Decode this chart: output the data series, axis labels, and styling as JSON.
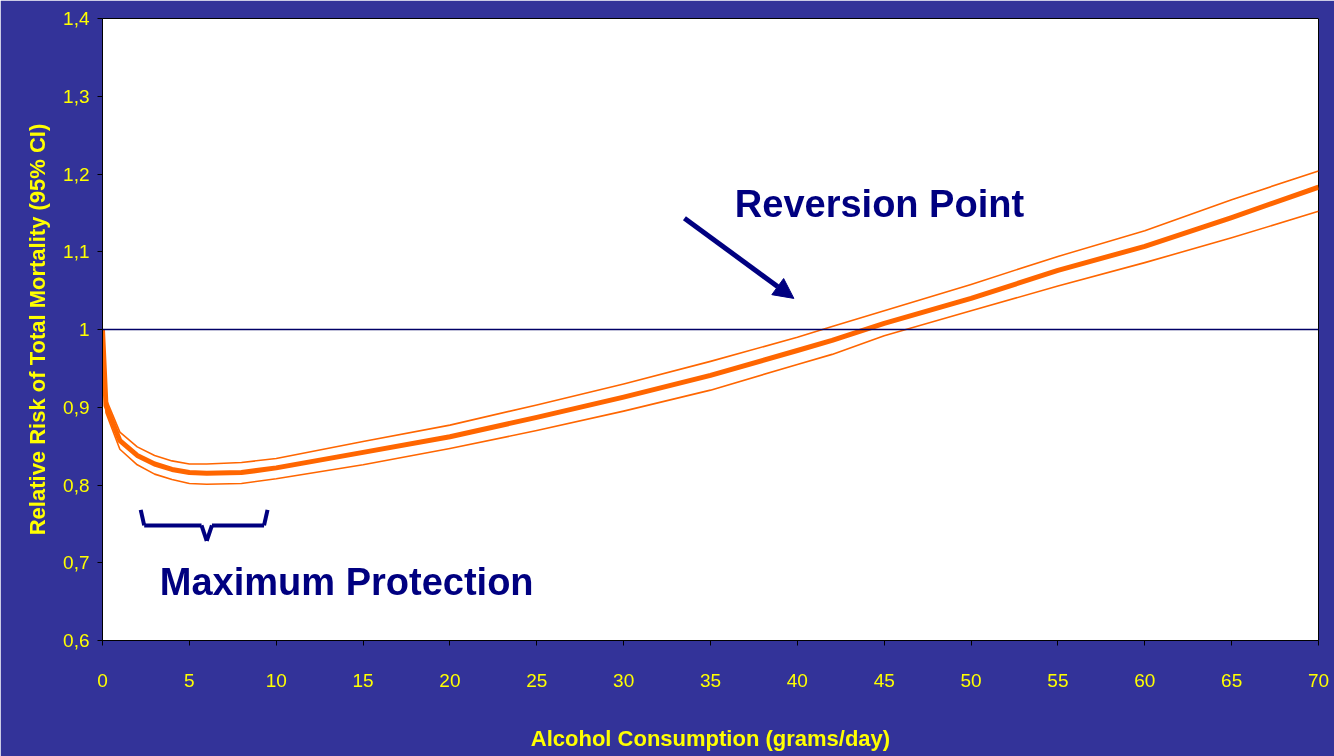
{
  "chart_data": {
    "type": "line",
    "xlabel": "Alcohol Consumption (grams/day)",
    "ylabel": "Relative Risk of Total Mortality (95% CI)",
    "xlim": [
      0,
      70
    ],
    "ylim": [
      0.6,
      1.4
    ],
    "xticks": [
      0,
      5,
      10,
      15,
      20,
      25,
      30,
      35,
      40,
      45,
      50,
      55,
      60,
      65,
      70
    ],
    "yticks": [
      {
        "value": 0.6,
        "label": "0,6"
      },
      {
        "value": 0.7,
        "label": "0,7"
      },
      {
        "value": 0.8,
        "label": "0,8"
      },
      {
        "value": 0.9,
        "label": "0,9"
      },
      1,
      {
        "value": 1.1,
        "label": "1,1"
      },
      {
        "value": 1.2,
        "label": "1,2"
      },
      {
        "value": 1.3,
        "label": "1,3"
      },
      {
        "value": 1.4,
        "label": "1,4"
      }
    ],
    "grid": false,
    "line_style": "solid",
    "ref_lines": [
      {
        "axis": "y",
        "value": 1,
        "label": null,
        "color": "#000066"
      }
    ],
    "annotations": [
      "Reversion Point",
      "Maximum Protection"
    ],
    "series": [
      {
        "color": "#ff6600",
        "x": [
          0,
          0.2,
          1,
          2,
          3,
          4,
          5,
          6,
          8,
          10,
          15,
          20,
          25,
          30,
          35,
          40,
          42,
          45,
          50,
          55,
          60,
          65,
          70
        ],
        "values": [
          1.0,
          0.902,
          0.857,
          0.838,
          0.827,
          0.82,
          0.816,
          0.815,
          0.816,
          0.822,
          0.842,
          0.862,
          0.887,
          0.913,
          0.941,
          0.973,
          0.986,
          1.008,
          1.04,
          1.076,
          1.107,
          1.144,
          1.183
        ]
      },
      {
        "color": "#ff6600",
        "x": [
          0,
          0.2,
          1,
          2,
          3,
          4,
          5,
          6,
          8,
          10,
          15,
          20,
          25,
          30,
          35,
          40,
          42,
          45,
          50,
          55,
          60,
          65,
          70
        ],
        "values": [
          1.0,
          0.893,
          0.846,
          0.826,
          0.814,
          0.807,
          0.802,
          0.801,
          0.802,
          0.808,
          0.826,
          0.847,
          0.87,
          0.895,
          0.922,
          0.955,
          0.968,
          0.992,
          1.024,
          1.056,
          1.086,
          1.118,
          1.152
        ]
      },
      {
        "color": "#ff6600",
        "x": [
          0,
          0.2,
          1,
          2,
          3,
          4,
          5,
          6,
          8,
          10,
          15,
          20,
          25,
          30,
          35,
          40,
          42,
          45,
          50,
          55,
          60,
          65,
          70
        ],
        "values": [
          1.0,
          0.911,
          0.868,
          0.849,
          0.838,
          0.831,
          0.827,
          0.827,
          0.829,
          0.834,
          0.856,
          0.877,
          0.903,
          0.93,
          0.959,
          0.99,
          1.004,
          1.024,
          1.058,
          1.094,
          1.127,
          1.167,
          1.204
        ]
      }
    ]
  }
}
